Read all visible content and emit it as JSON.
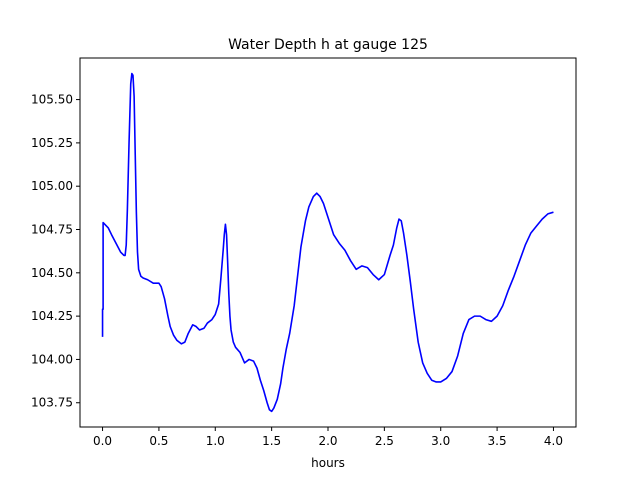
{
  "chart_data": {
    "type": "line",
    "title": "Water Depth h at gauge 125",
    "xlabel": "hours",
    "ylabel": "",
    "xlim": [
      -0.2,
      4.2
    ],
    "ylim": [
      103.61,
      105.74
    ],
    "xticks": [
      0.0,
      0.5,
      1.0,
      1.5,
      2.0,
      2.5,
      3.0,
      3.5,
      4.0
    ],
    "xtick_labels": [
      "0.0",
      "0.5",
      "1.0",
      "1.5",
      "2.0",
      "2.5",
      "3.0",
      "3.5",
      "4.0"
    ],
    "yticks": [
      103.75,
      104.0,
      104.25,
      104.5,
      104.75,
      105.0,
      105.25,
      105.5
    ],
    "ytick_labels": [
      "103.75",
      "104.00",
      "104.25",
      "104.50",
      "104.75",
      "105.00",
      "105.25",
      "105.50"
    ],
    "grid": false,
    "line_color": "#0000ff",
    "series": [
      {
        "x": [
          0.0,
          0.0,
          0.005,
          0.005,
          0.02,
          0.05,
          0.08,
          0.12,
          0.16,
          0.19,
          0.2,
          0.21,
          0.22,
          0.235,
          0.25,
          0.26,
          0.27,
          0.28,
          0.29,
          0.3,
          0.31,
          0.32,
          0.34,
          0.36,
          0.4,
          0.45,
          0.5,
          0.52,
          0.55,
          0.58,
          0.6,
          0.63,
          0.66,
          0.7,
          0.73,
          0.76,
          0.8,
          0.83,
          0.86,
          0.9,
          0.93,
          0.97,
          1.0,
          1.03,
          1.05,
          1.07,
          1.08,
          1.09,
          1.1,
          1.11,
          1.12,
          1.13,
          1.14,
          1.16,
          1.18,
          1.22,
          1.26,
          1.3,
          1.34,
          1.37,
          1.4,
          1.43,
          1.46,
          1.48,
          1.5,
          1.52,
          1.55,
          1.58,
          1.6,
          1.63,
          1.66,
          1.7,
          1.73,
          1.76,
          1.8,
          1.83,
          1.87,
          1.9,
          1.93,
          1.96,
          2.0,
          2.05,
          2.1,
          2.15,
          2.2,
          2.25,
          2.3,
          2.35,
          2.4,
          2.45,
          2.5,
          2.55,
          2.58,
          2.61,
          2.63,
          2.65,
          2.67,
          2.7,
          2.73,
          2.76,
          2.8,
          2.84,
          2.88,
          2.92,
          2.96,
          3.0,
          3.05,
          3.1,
          3.15,
          3.2,
          3.25,
          3.3,
          3.35,
          3.4,
          3.45,
          3.5,
          3.55,
          3.6,
          3.65,
          3.7,
          3.75,
          3.8,
          3.85,
          3.9,
          3.95,
          4.0
        ],
        "y": [
          104.13,
          104.29,
          104.29,
          104.79,
          104.78,
          104.76,
          104.72,
          104.67,
          104.62,
          104.6,
          104.6,
          104.66,
          104.86,
          105.25,
          105.59,
          105.65,
          105.64,
          105.52,
          105.18,
          104.85,
          104.62,
          104.52,
          104.48,
          104.47,
          104.46,
          104.44,
          104.44,
          104.42,
          104.35,
          104.25,
          104.19,
          104.14,
          104.11,
          104.09,
          104.1,
          104.15,
          104.2,
          104.19,
          104.17,
          104.18,
          104.21,
          104.23,
          104.26,
          104.32,
          104.47,
          104.63,
          104.72,
          104.78,
          104.72,
          104.56,
          104.38,
          104.25,
          104.17,
          104.1,
          104.07,
          104.04,
          103.98,
          104.0,
          103.99,
          103.95,
          103.88,
          103.82,
          103.75,
          103.71,
          103.7,
          103.72,
          103.77,
          103.86,
          103.95,
          104.06,
          104.15,
          104.31,
          104.48,
          104.65,
          104.8,
          104.88,
          104.94,
          104.96,
          104.94,
          104.9,
          104.82,
          104.72,
          104.67,
          104.63,
          104.57,
          104.52,
          104.54,
          104.53,
          104.49,
          104.46,
          104.49,
          104.6,
          104.66,
          104.76,
          104.81,
          104.8,
          104.73,
          104.6,
          104.45,
          104.29,
          104.1,
          103.98,
          103.92,
          103.88,
          103.87,
          103.87,
          103.89,
          103.93,
          104.02,
          104.15,
          104.23,
          104.25,
          104.25,
          104.23,
          104.22,
          104.25,
          104.31,
          104.4,
          104.48,
          104.57,
          104.66,
          104.73,
          104.77,
          104.81,
          104.84,
          104.85
        ]
      }
    ]
  }
}
